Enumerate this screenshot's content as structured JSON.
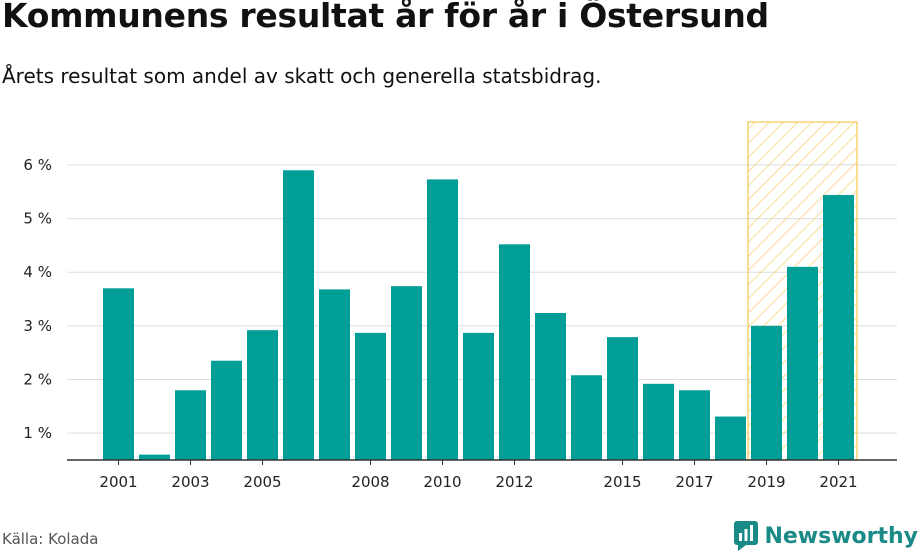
{
  "title": "Kommunens resultat år för år i Östersund",
  "subtitle": "Årets resultat som andel av skatt och generella statsbidrag.",
  "source": "Källa: Kolada",
  "brand": "Newsworthy",
  "colors": {
    "bar": "#009e96",
    "highlight_stroke": "#f5c84c",
    "grid": "#dddddd",
    "axis": "#333333",
    "brand": "#1a8a86"
  },
  "chart_data": {
    "type": "bar",
    "title": "Kommunens resultat år för år i Östersund",
    "xlabel": "",
    "ylabel": "",
    "categories": [
      "2001",
      "2002",
      "2003",
      "2004",
      "2005",
      "2006",
      "2007",
      "2008",
      "2009",
      "2010",
      "2011",
      "2012",
      "2013",
      "2014",
      "2015",
      "2016",
      "2017",
      "2018",
      "2019",
      "2020",
      "2021"
    ],
    "values": [
      3.7,
      0.6,
      1.8,
      2.35,
      2.92,
      5.9,
      3.68,
      2.87,
      3.74,
      5.73,
      2.87,
      4.52,
      3.24,
      2.08,
      2.79,
      1.92,
      1.8,
      1.31,
      3.0,
      4.1,
      5.44
    ],
    "x_tick_labels": [
      "2001",
      "2003",
      "2005",
      "2008",
      "2010",
      "2012",
      "2015",
      "2017",
      "2019",
      "2021"
    ],
    "y_ticks": [
      1,
      2,
      3,
      4,
      5,
      6
    ],
    "y_tick_labels": [
      "1 %",
      "2 %",
      "3 %",
      "4 %",
      "5 %",
      "6 %"
    ],
    "ylim": [
      0.5,
      6.8
    ],
    "grid": true,
    "highlight_range": [
      "2019",
      "2021"
    ]
  }
}
